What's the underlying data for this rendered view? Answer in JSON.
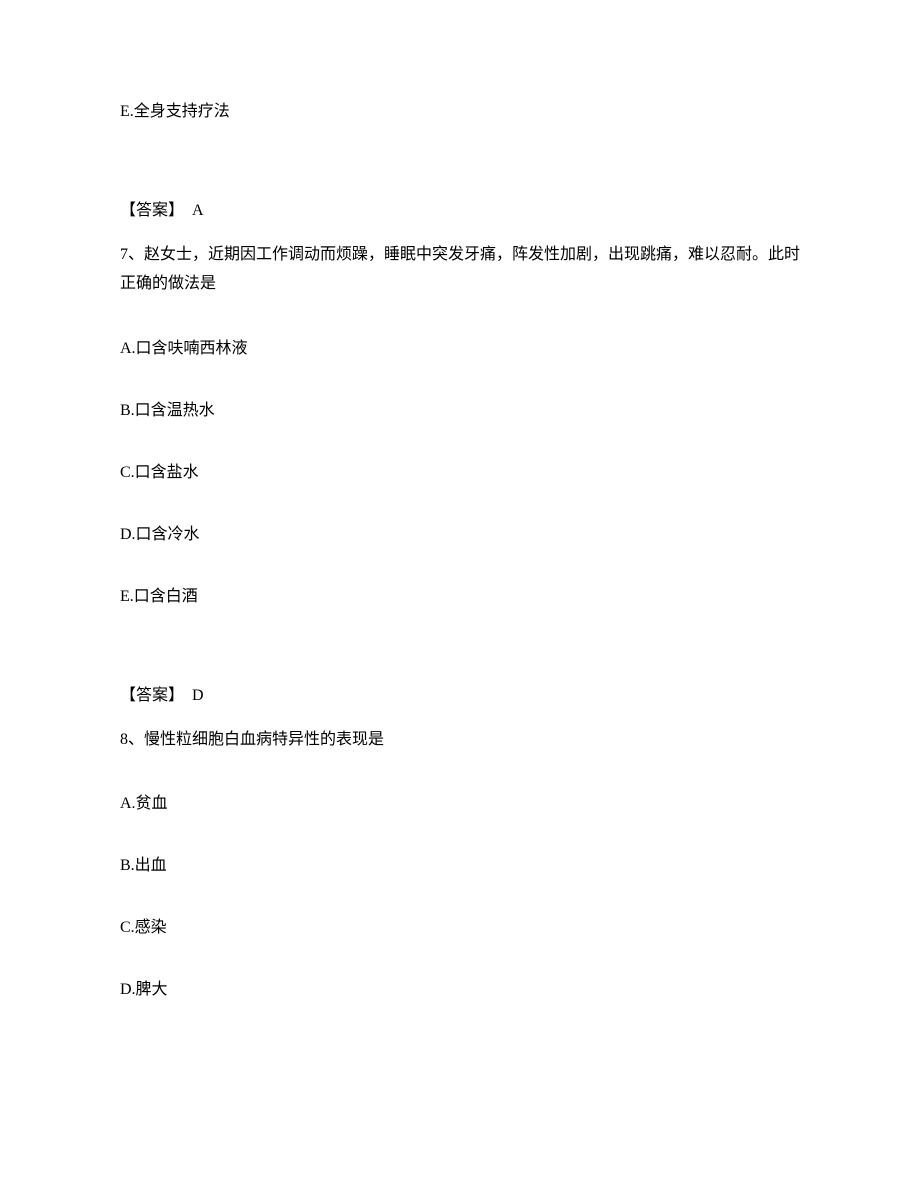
{
  "q6_tail": {
    "option_e": "E.全身支持疗法",
    "answer_label": "【答案】",
    "answer_value": "A"
  },
  "q7": {
    "question": "7、赵女士，近期因工作调动而烦躁，睡眠中突发牙痛，阵发性加剧，出现跳痛，难以忍耐。此时正确的做法是",
    "option_a": "A.口含呋喃西林液",
    "option_b": "B.口含温热水",
    "option_c": "C.口含盐水",
    "option_d": "D.口含冷水",
    "option_e": "E.口含白酒",
    "answer_label": "【答案】",
    "answer_value": "D"
  },
  "q8": {
    "question": "8、慢性粒细胞白血病特异性的表现是",
    "option_a": "A.贫血",
    "option_b": "B.出血",
    "option_c": "C.感染",
    "option_d": "D.脾大"
  }
}
